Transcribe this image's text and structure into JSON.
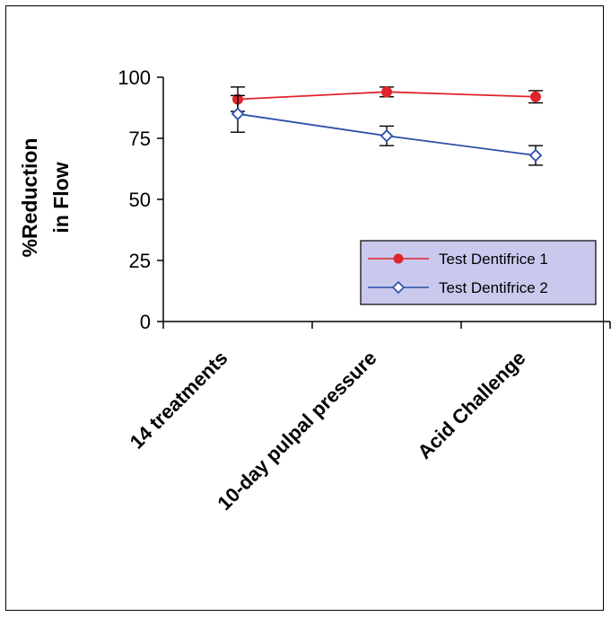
{
  "chart_data": {
    "type": "line",
    "title": "",
    "ylabel_lines": [
      "%Reduction",
      "in Flow"
    ],
    "xlabel": "",
    "categories": [
      "14 treatments",
      "10-day pulpal pressure",
      "Acid Challenge"
    ],
    "ylim": [
      0,
      100
    ],
    "yticks": [
      "0",
      "25",
      "50",
      "75",
      "100"
    ],
    "grid": false,
    "legend_position": "bottom-right",
    "series": [
      {
        "name": "Test Dentifrice 1",
        "values": [
          91,
          94,
          92
        ],
        "errors": [
          5,
          2,
          2.5
        ],
        "color": "#e0242c",
        "marker": "filled-circle"
      },
      {
        "name": "Test Dentifrice 2",
        "values": [
          85,
          76,
          68
        ],
        "errors": [
          7.5,
          4,
          4
        ],
        "color": "#2b4fa8",
        "marker": "open-diamond"
      }
    ]
  }
}
